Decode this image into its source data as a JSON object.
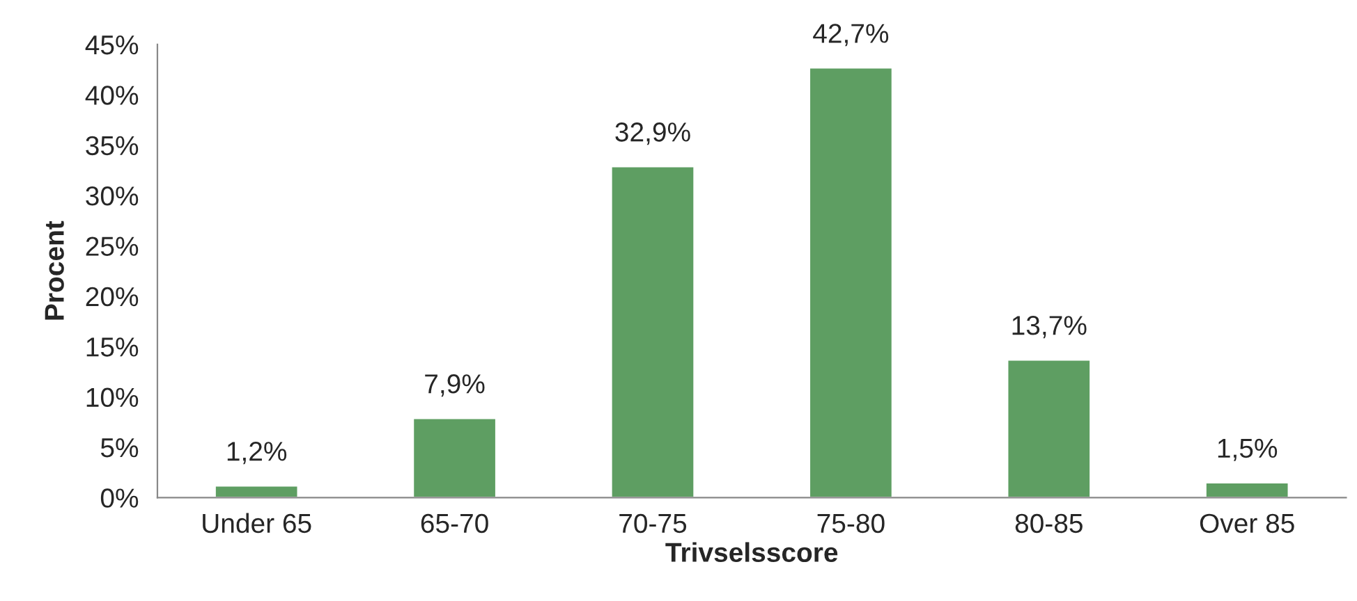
{
  "chart_data": {
    "type": "bar",
    "xlabel": "Trivselsscore",
    "ylabel": "Procent",
    "categories": [
      "Under 65",
      "65-70",
      "70-75",
      "75-80",
      "80-85",
      "Over 85"
    ],
    "values": [
      1.2,
      7.9,
      32.9,
      42.7,
      13.7,
      1.5
    ],
    "value_labels": [
      "1,2%",
      "7,9%",
      "32,9%",
      "42,7%",
      "13,7%",
      "1,5%"
    ],
    "color": "#5e9e62",
    "ylim": [
      0,
      45
    ],
    "yticks": [
      {
        "value": 0,
        "label": "0%"
      },
      {
        "value": 5,
        "label": "5%"
      },
      {
        "value": 10,
        "label": "10%"
      },
      {
        "value": 15,
        "label": "15%"
      },
      {
        "value": 20,
        "label": "20%"
      },
      {
        "value": 25,
        "label": "25%"
      },
      {
        "value": 30,
        "label": "30%"
      },
      {
        "value": 35,
        "label": "35%"
      },
      {
        "value": 40,
        "label": "40%"
      },
      {
        "value": 45,
        "label": "45%"
      }
    ],
    "grid": false,
    "legend": false
  }
}
